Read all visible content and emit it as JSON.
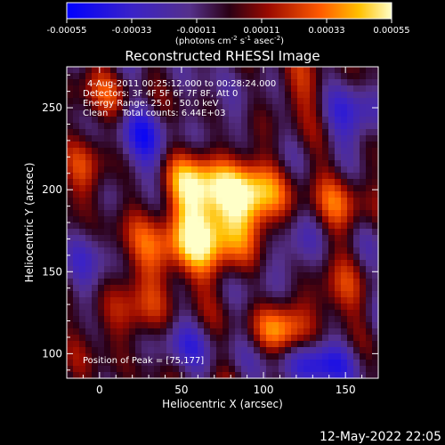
{
  "chart_data": {
    "type": "heatmap",
    "title": "Reconstructed RHESSI Image",
    "xlabel": "Heliocentric X (arcsec)",
    "ylabel": "Heliocentric Y (arcsec)",
    "xlim": [
      -20,
      170
    ],
    "ylim": [
      85,
      275
    ],
    "x_ticks": [
      0,
      50,
      100,
      150
    ],
    "y_ticks": [
      100,
      150,
      200,
      250
    ],
    "colorbar": {
      "range": [
        -0.00055,
        0.00055
      ],
      "ticks": [
        "-0.00055",
        "-0.00033",
        "-0.00011",
        "0.00011",
        "0.00033",
        "0.00055"
      ],
      "label_parts": [
        "(photons cm",
        "-2",
        " s",
        "-1",
        " asec",
        "-2",
        ")"
      ]
    },
    "annotations": {
      "time": "4-Aug-2011 00:25:12.000 to 00:28:24.000",
      "detectors": "Detectors: 3F 4F 5F 6F 7F 8F, Att 0",
      "energy": "Energy Range: 25.0 - 50.0 keV",
      "clean": "Clean     Total counts: 6.44E+03",
      "peak": "Position of Peak = [75,177]"
    },
    "footer_date": "12-May-2022 22:05",
    "peak_position": [
      75,
      177
    ],
    "emission_sources": [
      {
        "x": 75,
        "y": 177,
        "amp": 0.00052,
        "sx": 22,
        "sy": 18
      },
      {
        "x": 60,
        "y": 205,
        "amp": 0.0004,
        "sx": 16,
        "sy": 14
      },
      {
        "x": 95,
        "y": 200,
        "amp": 0.00032,
        "sx": 16,
        "sy": 14
      },
      {
        "x": 40,
        "y": 160,
        "amp": 0.00028,
        "sx": 18,
        "sy": 16
      },
      {
        "x": 15,
        "y": 120,
        "amp": 0.00022,
        "sx": 18,
        "sy": 14
      },
      {
        "x": -10,
        "y": 210,
        "amp": 0.0003,
        "sx": 10,
        "sy": 14
      },
      {
        "x": 110,
        "y": 115,
        "amp": 0.00035,
        "sx": 12,
        "sy": 12
      },
      {
        "x": 150,
        "y": 195,
        "amp": 0.00025,
        "sx": 12,
        "sy": 14
      },
      {
        "x": 5,
        "y": 255,
        "amp": 0.0002,
        "sx": 16,
        "sy": 12
      },
      {
        "x": 120,
        "y": 260,
        "amp": 0.00018,
        "sx": 16,
        "sy": 12
      },
      {
        "x": 140,
        "y": 135,
        "amp": 0.00022,
        "sx": 14,
        "sy": 12
      }
    ],
    "negative_regions": [
      {
        "x": 25,
        "y": 230,
        "amp": -0.0003,
        "sx": 14,
        "sy": 18
      },
      {
        "x": 110,
        "y": 160,
        "amp": -0.00025,
        "sx": 14,
        "sy": 16
      },
      {
        "x": -10,
        "y": 150,
        "amp": -0.0002,
        "sx": 10,
        "sy": 18
      },
      {
        "x": 135,
        "y": 95,
        "amp": -0.00035,
        "sx": 18,
        "sy": 10
      },
      {
        "x": 50,
        "y": 105,
        "amp": -0.00018,
        "sx": 18,
        "sy": 12
      },
      {
        "x": 155,
        "y": 245,
        "amp": -0.00025,
        "sx": 14,
        "sy": 16
      },
      {
        "x": 85,
        "y": 250,
        "amp": -0.00015,
        "sx": 12,
        "sy": 12
      }
    ]
  }
}
